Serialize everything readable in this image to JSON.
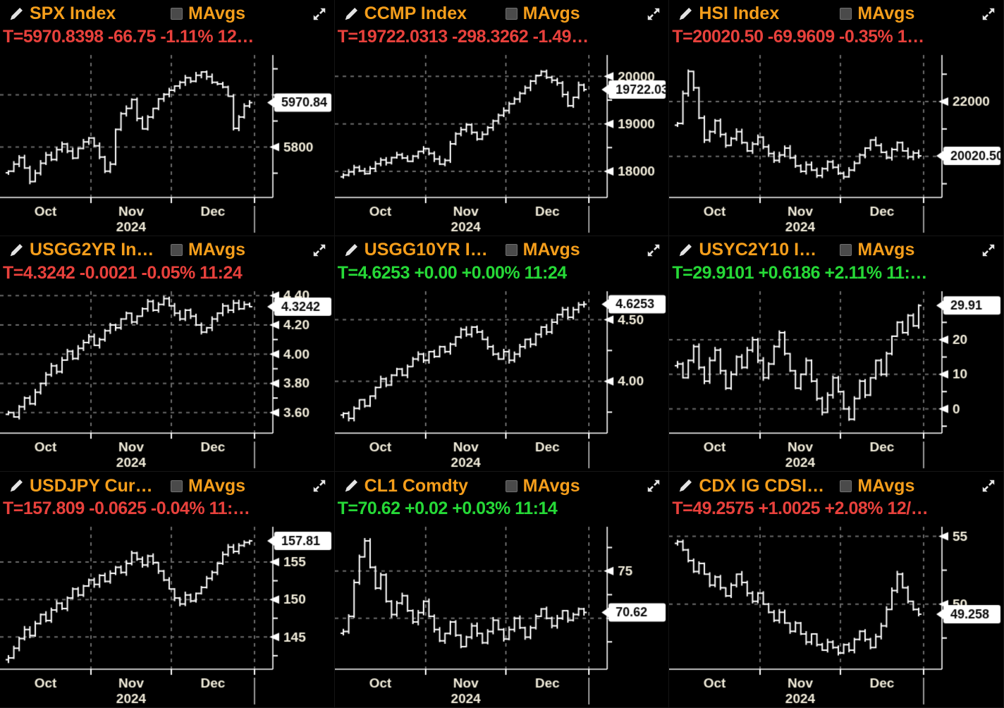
{
  "colors": {
    "red": "#e8413c",
    "green": "#26d937",
    "title_orange": "#f59e1b",
    "axis_text": "#f2eddb",
    "bar_white": "#ffffff",
    "grid_gray": "#6b6b6b",
    "label_box_bg": "#ffffff",
    "label_box_text": "#0a0a0a",
    "checkbox_gray": "#4a4a4a"
  },
  "icons": {
    "pencil": "annotate-pencil (✎)",
    "mavgs_checkbox": "checkbox-unchecked (■)",
    "expand": "expand-diagonal-arrows (⤢)"
  },
  "x_axis": {
    "months": [
      "Oct",
      "Nov",
      "Dec"
    ],
    "year": "2024"
  },
  "panels": [
    {
      "id": "spx",
      "title": "SPX Index",
      "mavgs": "MAvgs",
      "mavgs_checked": false,
      "ticker": "T=5970.8398 -66.75 -1.11% 12…",
      "ticker_color": "red",
      "chart_data": {
        "type": "ohlc-bar",
        "ylim": [
          5607,
          6153
        ],
        "yticks": [
          {
            "value": 6100
          },
          {
            "value": 6000,
            "grid": true
          },
          {
            "value": 5900
          },
          {
            "value": 5800,
            "label": "5800",
            "grid": true
          },
          {
            "value": 5700
          }
        ],
        "last": {
          "value": 5970.84,
          "label": "5970.84"
        },
        "close": [
          5708,
          5735,
          5760,
          5720,
          5668,
          5700,
          5738,
          5770,
          5752,
          5790,
          5812,
          5785,
          5758,
          5795,
          5820,
          5835,
          5805,
          5762,
          5708,
          5735,
          5868,
          5928,
          5948,
          5982,
          5910,
          5870,
          5915,
          5948,
          5985,
          6002,
          6018,
          6034,
          6048,
          6066,
          6052,
          6075,
          6088,
          6070,
          6048,
          6042,
          6030,
          5995,
          5872,
          5915,
          5958,
          5970.84
        ]
      }
    },
    {
      "id": "ccmp",
      "title": "CCMP Index",
      "mavgs": "MAvgs",
      "mavgs_checked": false,
      "ticker": "T=19722.0313 -298.3262 -1.49…",
      "ticker_color": "red",
      "chart_data": {
        "type": "ohlc-bar",
        "ylim": [
          17450,
          20450
        ],
        "yticks": [
          {
            "value": 20000,
            "label": "20000",
            "grid": true
          },
          {
            "value": 19500
          },
          {
            "value": 19000,
            "label": "19000",
            "grid": true
          },
          {
            "value": 18500
          },
          {
            "value": 18000,
            "label": "18000",
            "grid": true
          }
        ],
        "last": {
          "value": 19722.03,
          "label": "19722.03"
        },
        "close": [
          17920,
          17990,
          18080,
          18010,
          17950,
          18060,
          18160,
          18240,
          18180,
          18290,
          18350,
          18280,
          18210,
          18320,
          18420,
          18480,
          18380,
          18260,
          18150,
          18230,
          18580,
          18790,
          18880,
          18980,
          18820,
          18680,
          18780,
          18920,
          19060,
          19180,
          19280,
          19420,
          19520,
          19640,
          19760,
          19900,
          20020,
          20100,
          19980,
          19920,
          19860,
          19620,
          19380,
          19560,
          19820,
          19722.03
        ]
      }
    },
    {
      "id": "hsi",
      "title": "HSI Index",
      "mavgs": "MAvgs",
      "mavgs_checked": false,
      "ticker": "T=20020.50 -69.9609 -0.35% 1…",
      "ticker_color": "red",
      "chart_data": {
        "type": "ohlc-bar",
        "ylim": [
          18500,
          23700
        ],
        "yticks": [
          {
            "value": 23000
          },
          {
            "value": 22000,
            "label": "22000",
            "grid": true
          },
          {
            "value": 21000
          },
          {
            "value": 20000,
            "grid": true
          },
          {
            "value": 19000
          }
        ],
        "last": {
          "value": 20020.5,
          "label": "20020.50"
        },
        "close": [
          21200,
          22300,
          23100,
          22500,
          21400,
          20600,
          20900,
          21300,
          20800,
          20400,
          20650,
          20900,
          20500,
          20200,
          20450,
          20700,
          20350,
          20100,
          19850,
          20050,
          20300,
          19950,
          19650,
          19450,
          19700,
          19500,
          19300,
          19550,
          19800,
          19600,
          19380,
          19250,
          19500,
          19750,
          20050,
          20300,
          20600,
          20400,
          20150,
          19950,
          20250,
          20500,
          20200,
          19980,
          20120,
          20020.5
        ]
      }
    },
    {
      "id": "usgg2yr",
      "title": "USGG2YR In…",
      "mavgs": "MAvgs",
      "mavgs_checked": false,
      "ticker": "T=4.3242 -0.0021 -0.05% 11:24",
      "ticker_color": "red",
      "chart_data": {
        "type": "ohlc-bar",
        "ylim": [
          3.46,
          4.43
        ],
        "yticks": [
          {
            "value": 4.4,
            "label": "4.40",
            "grid": true
          },
          {
            "value": 4.3
          },
          {
            "value": 4.2,
            "label": "4.20",
            "grid": true
          },
          {
            "value": 4.1
          },
          {
            "value": 4.0,
            "label": "4.00",
            "grid": true
          },
          {
            "value": 3.9
          },
          {
            "value": 3.8,
            "label": "3.80",
            "grid": true
          },
          {
            "value": 3.7
          },
          {
            "value": 3.6,
            "label": "3.60",
            "grid": true
          }
        ],
        "last": {
          "value": 4.3242,
          "label": "4.3242"
        },
        "close": [
          3.6,
          3.57,
          3.64,
          3.7,
          3.66,
          3.74,
          3.8,
          3.86,
          3.92,
          3.88,
          3.96,
          4.02,
          3.97,
          4.04,
          4.08,
          4.12,
          4.06,
          4.1,
          4.16,
          4.2,
          4.18,
          4.24,
          4.28,
          4.22,
          4.26,
          4.31,
          4.36,
          4.3,
          4.34,
          4.38,
          4.33,
          4.28,
          4.24,
          4.3,
          4.26,
          4.2,
          4.15,
          4.18,
          4.24,
          4.28,
          4.33,
          4.3,
          4.35,
          4.31,
          4.34,
          4.3242
        ]
      }
    },
    {
      "id": "usgg10yr",
      "title": "USGG10YR I…",
      "mavgs": "MAvgs",
      "mavgs_checked": false,
      "ticker": "T=4.6253 +0.00 +0.00% 11:24",
      "ticker_color": "green",
      "chart_data": {
        "type": "ohlc-bar",
        "ylim": [
          3.58,
          4.73
        ],
        "yticks": [
          {
            "value": 4.5,
            "label": "4.50",
            "grid": true
          },
          {
            "value": 4.25
          },
          {
            "value": 4.0,
            "label": "4.00",
            "grid": true
          },
          {
            "value": 3.75
          }
        ],
        "last": {
          "value": 4.6253,
          "label": "4.6253"
        },
        "close": [
          3.74,
          3.7,
          3.78,
          3.85,
          3.8,
          3.88,
          3.95,
          4.02,
          3.97,
          4.05,
          4.1,
          4.05,
          4.12,
          4.18,
          4.22,
          4.17,
          4.24,
          4.2,
          4.28,
          4.24,
          4.3,
          4.36,
          4.42,
          4.38,
          4.44,
          4.4,
          4.34,
          4.28,
          4.22,
          4.18,
          4.24,
          4.17,
          4.22,
          4.28,
          4.34,
          4.3,
          4.38,
          4.44,
          4.4,
          4.48,
          4.54,
          4.58,
          4.52,
          4.58,
          4.62,
          4.6253
        ]
      }
    },
    {
      "id": "usyc2y10",
      "title": "USYC2Y10 I…",
      "mavgs": "MAvgs",
      "mavgs_checked": false,
      "ticker": "T=29.9101 +0.6186 +2.11% 11:…",
      "ticker_color": "green",
      "chart_data": {
        "type": "ohlc-bar",
        "ylim": [
          -7,
          34
        ],
        "yticks": [
          {
            "value": 30
          },
          {
            "value": 25
          },
          {
            "value": 20,
            "label": "20",
            "grid": true
          },
          {
            "value": 15
          },
          {
            "value": 10,
            "label": "10",
            "grid": true
          },
          {
            "value": 5
          },
          {
            "value": 0,
            "label": "0",
            "grid": true
          },
          {
            "value": -5
          }
        ],
        "last": {
          "value": 29.91,
          "label": "29.91"
        },
        "close": [
          13,
          9,
          14,
          18,
          12,
          8,
          14,
          17,
          11,
          6,
          10,
          15,
          12,
          17,
          20,
          14,
          9,
          13,
          18,
          22,
          16,
          11,
          6,
          10,
          14,
          8,
          3,
          -1,
          4,
          9,
          5,
          0,
          -3,
          3,
          8,
          4,
          9,
          14,
          10,
          16,
          21,
          25,
          22,
          27,
          24,
          29.91
        ]
      }
    },
    {
      "id": "usdjpy",
      "title": "USDJPY Cur…",
      "mavgs": "MAvgs",
      "mavgs_checked": false,
      "ticker": "T=157.809 -0.0625 -0.04% 11:…",
      "ticker_color": "red",
      "chart_data": {
        "type": "ohlc-bar",
        "ylim": [
          140.7,
          159.7
        ],
        "yticks": [
          {
            "value": 157.5
          },
          {
            "value": 155,
            "label": "155",
            "grid": true
          },
          {
            "value": 152.5
          },
          {
            "value": 150,
            "label": "150",
            "grid": true
          },
          {
            "value": 147.5
          },
          {
            "value": 145,
            "label": "145",
            "grid": true
          },
          {
            "value": 142.5
          }
        ],
        "last": {
          "value": 157.81,
          "label": "157.81"
        },
        "close": [
          142.2,
          143.5,
          144.8,
          146.0,
          145.2,
          146.8,
          148.0,
          147.2,
          148.6,
          149.5,
          148.8,
          150.2,
          151.4,
          150.6,
          151.8,
          152.6,
          152.0,
          153.2,
          152.4,
          153.5,
          154.3,
          153.6,
          154.8,
          156.2,
          155.4,
          154.6,
          155.8,
          154.9,
          153.8,
          152.6,
          151.4,
          150.2,
          149.4,
          150.6,
          149.8,
          150.8,
          151.6,
          152.8,
          153.6,
          154.8,
          156.0,
          157.0,
          156.4,
          157.2,
          157.6,
          157.81
        ]
      }
    },
    {
      "id": "cl1",
      "title": "CL1 Comdty",
      "mavgs": "MAvgs",
      "mavgs_checked": false,
      "ticker": "T=70.62 +0.02 +0.03% 11:14",
      "ticker_color": "green",
      "chart_data": {
        "type": "ohlc-bar",
        "ylim": [
          64.6,
          79.7
        ],
        "yticks": [
          {
            "value": 77.5
          },
          {
            "value": 75,
            "label": "75",
            "grid": true
          },
          {
            "value": 72.5
          },
          {
            "value": 70,
            "grid": true
          },
          {
            "value": 67.5
          }
        ],
        "last": {
          "value": 70.62,
          "label": "70.62"
        },
        "close": [
          68.6,
          70.2,
          73.8,
          76.5,
          78.2,
          75.4,
          73.2,
          74.6,
          71.8,
          70.4,
          71.6,
          72.4,
          70.8,
          69.6,
          70.6,
          71.8,
          70.2,
          68.8,
          67.6,
          68.4,
          69.6,
          68.2,
          67.0,
          68.0,
          69.2,
          68.4,
          67.4,
          68.6,
          69.8,
          68.8,
          67.8,
          68.8,
          70.0,
          69.0,
          68.0,
          69.0,
          70.2,
          71.0,
          70.0,
          69.2,
          70.0,
          70.8,
          69.8,
          70.4,
          71.0,
          70.62
        ]
      }
    },
    {
      "id": "cdx-ig",
      "title": "CDX IG CDSI…",
      "mavgs": "MAvgs",
      "mavgs_checked": false,
      "ticker": "T=49.2575 +1.0025 +2.08% 12/…",
      "ticker_color": "red",
      "chart_data": {
        "type": "ohlc-bar",
        "ylim": [
          45.2,
          55.7
        ],
        "yticks": [
          {
            "value": 55,
            "label": "55",
            "grid": true
          },
          {
            "value": 52.5
          },
          {
            "value": 50,
            "label": "50",
            "grid": true
          },
          {
            "value": 47.5
          }
        ],
        "last": {
          "value": 49.2575,
          "label": "49.258"
        },
        "close": [
          54.6,
          54.0,
          53.2,
          52.4,
          53.0,
          52.2,
          51.4,
          52.0,
          51.2,
          50.6,
          51.4,
          52.2,
          51.6,
          50.8,
          50.2,
          50.8,
          50.0,
          49.4,
          48.8,
          49.4,
          48.6,
          48.0,
          48.6,
          47.8,
          47.2,
          47.8,
          47.0,
          46.6,
          47.2,
          46.8,
          46.4,
          47.0,
          46.6,
          47.4,
          48.0,
          47.4,
          46.8,
          47.6,
          48.4,
          49.6,
          51.0,
          52.2,
          51.2,
          50.2,
          49.6,
          49.2575
        ]
      }
    }
  ]
}
